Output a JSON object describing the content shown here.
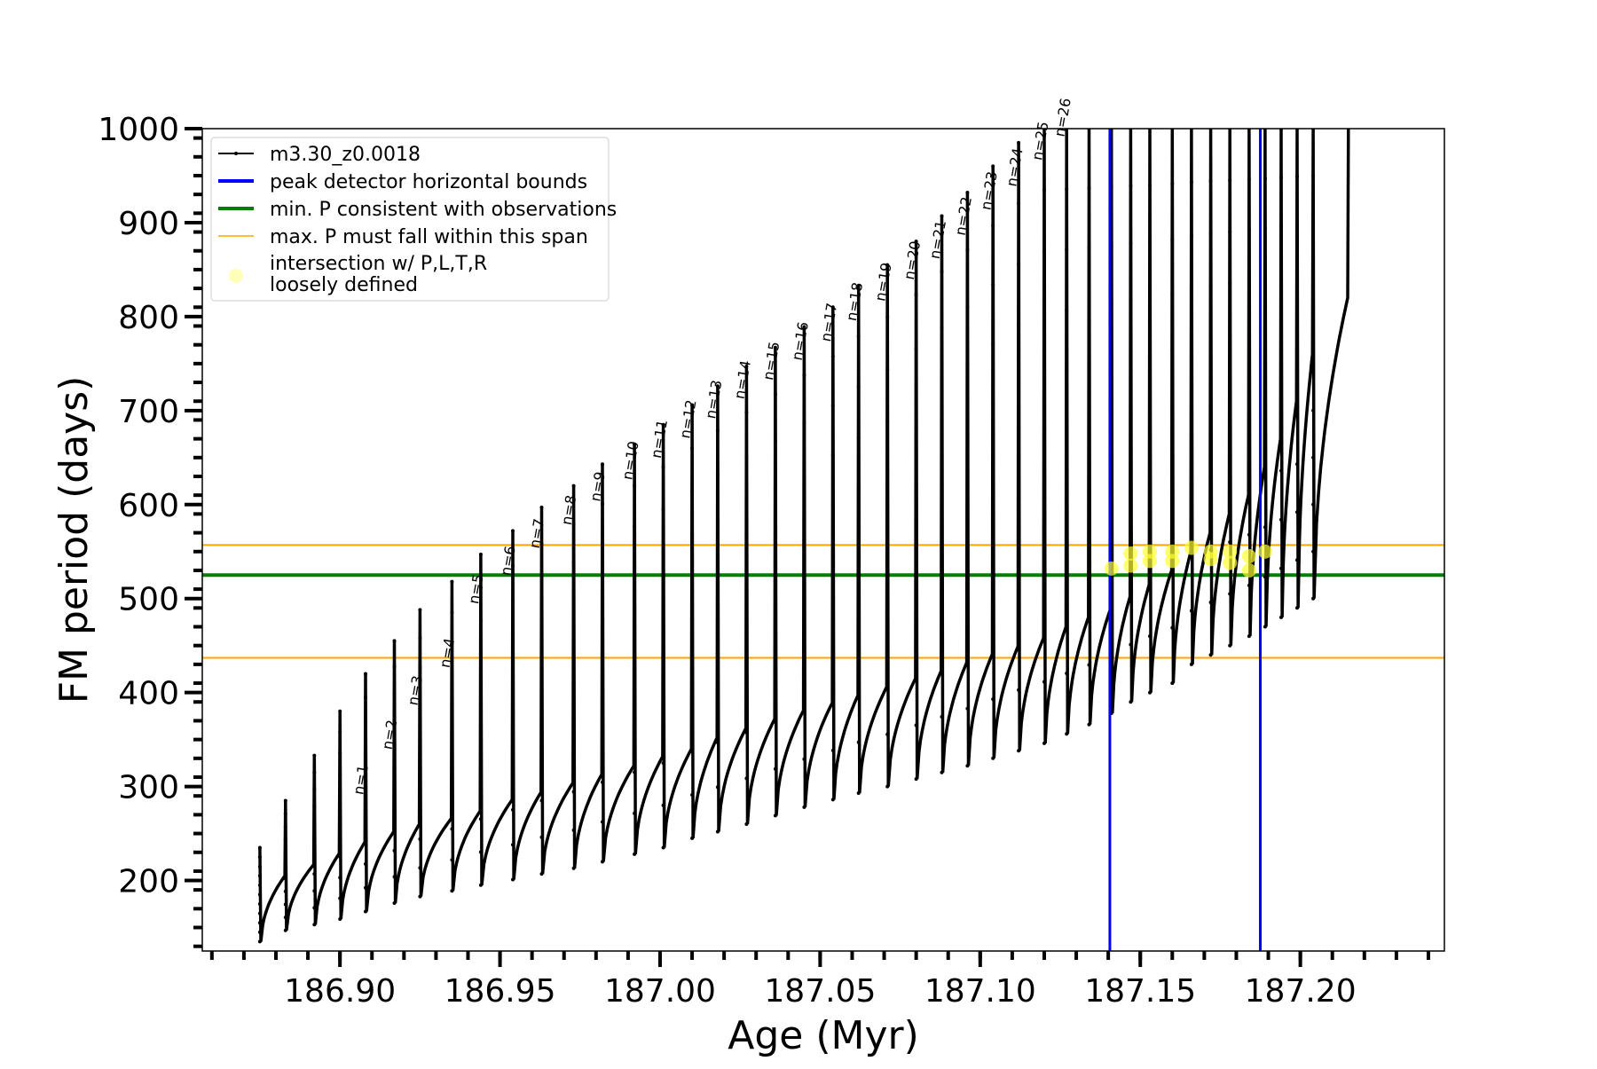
{
  "chart_data": {
    "type": "line",
    "xlabel": "Age (Myr)",
    "ylabel": "FM period (days)",
    "xlim": [
      186.857,
      187.245
    ],
    "ylim": [
      125,
      1000
    ],
    "x_ticks": [
      186.9,
      186.95,
      187.0,
      187.05,
      187.1,
      187.15,
      187.2
    ],
    "x_tick_labels": [
      "186.90",
      "186.95",
      "187.00",
      "187.05",
      "187.10",
      "187.15",
      "187.20"
    ],
    "y_ticks": [
      200,
      300,
      400,
      500,
      600,
      700,
      800,
      900,
      1000
    ],
    "y_tick_labels": [
      "200",
      "300",
      "400",
      "500",
      "600",
      "700",
      "800",
      "900",
      "1000"
    ],
    "grid": false,
    "legend_position": "upper-left",
    "legend": [
      {
        "label": "m3.30_z0.0018",
        "kind": "line-marker",
        "color": "#000000"
      },
      {
        "label": "peak detector horizontal bounds",
        "kind": "line",
        "color": "#0000ff"
      },
      {
        "label": "min. P consistent with observations",
        "kind": "line",
        "color": "#008000"
      },
      {
        "label": "max. P must fall within this span",
        "kind": "line",
        "color": "#ffa500"
      },
      {
        "label": "intersection w/ P,L,T,R\nloosely defined",
        "kind": "marker",
        "color": "#ffff66"
      }
    ],
    "series": [
      {
        "name": "m3.30_z0.0018",
        "color": "#000000",
        "pulse_start_ages": [
          186.875,
          186.883,
          186.892,
          186.9,
          186.908,
          186.917,
          186.925,
          186.935,
          186.944,
          186.954,
          186.963,
          186.973,
          186.982,
          186.992,
          187.001,
          187.01,
          187.018,
          187.027,
          187.036,
          187.045,
          187.054,
          187.062,
          187.071,
          187.08,
          187.088,
          187.096,
          187.104,
          187.112,
          187.12,
          187.127,
          187.134,
          187.141,
          187.147,
          187.153,
          187.16,
          187.166,
          187.172,
          187.178,
          187.184,
          187.189,
          187.194,
          187.199,
          187.204
        ],
        "interpulse_max_P": [
          205,
          217,
          229,
          241,
          252,
          260,
          266,
          274,
          286,
          294,
          304,
          313,
          322,
          332,
          340,
          352,
          362,
          372,
          381,
          389,
          397,
          406,
          415,
          423,
          432,
          441,
          449,
          458,
          470,
          480,
          490,
          502,
          515,
          530,
          550,
          570,
          590,
          610,
          640,
          670,
          710,
          760,
          820
        ],
        "spike_min_P": [
          135,
          147,
          153,
          159,
          167,
          176,
          183,
          189,
          195,
          201,
          207,
          213,
          220,
          228,
          235,
          245,
          252,
          260,
          269,
          278,
          286,
          293,
          300,
          308,
          315,
          322,
          330,
          338,
          346,
          356,
          366,
          378,
          390,
          400,
          410,
          430,
          440,
          450,
          460,
          470,
          480,
          490,
          500
        ],
        "spike_peak_P": [
          235,
          285,
          333,
          380,
          420,
          455,
          488,
          518,
          547,
          572,
          597,
          620,
          643,
          664,
          685,
          706,
          726,
          747,
          767,
          789,
          810,
          833,
          855,
          880,
          907,
          932,
          960,
          985,
          1000,
          1000,
          1000,
          1000,
          1000,
          1000,
          1000,
          1000,
          1000,
          1000,
          1000,
          1000,
          1000,
          1000,
          1000
        ],
        "final_age": 187.215,
        "final_P": 1000
      }
    ],
    "pulse_labels": [
      {
        "text": "n=1",
        "x": 186.908,
        "y": 285
      },
      {
        "text": "n=2",
        "x": 186.917,
        "y": 333
      },
      {
        "text": "n=3",
        "x": 186.925,
        "y": 380
      },
      {
        "text": "n=4",
        "x": 186.935,
        "y": 420
      },
      {
        "text": "n=5",
        "x": 186.944,
        "y": 488
      },
      {
        "text": "n=6",
        "x": 186.954,
        "y": 518
      },
      {
        "text": "n=7",
        "x": 186.963,
        "y": 547
      },
      {
        "text": "n=8",
        "x": 186.973,
        "y": 572
      },
      {
        "text": "n=9",
        "x": 186.982,
        "y": 597
      },
      {
        "text": "n=10",
        "x": 186.992,
        "y": 620
      },
      {
        "text": "n=11",
        "x": 187.001,
        "y": 643
      },
      {
        "text": "n=12",
        "x": 187.01,
        "y": 664
      },
      {
        "text": "n=13",
        "x": 187.018,
        "y": 685
      },
      {
        "text": "n=14",
        "x": 187.027,
        "y": 706
      },
      {
        "text": "n=15",
        "x": 187.036,
        "y": 726
      },
      {
        "text": "n=16",
        "x": 187.045,
        "y": 747
      },
      {
        "text": "n=17",
        "x": 187.054,
        "y": 767
      },
      {
        "text": "n=18",
        "x": 187.062,
        "y": 789
      },
      {
        "text": "n=19",
        "x": 187.071,
        "y": 810
      },
      {
        "text": "n=20",
        "x": 187.08,
        "y": 833
      },
      {
        "text": "n=21",
        "x": 187.088,
        "y": 855
      },
      {
        "text": "n=22",
        "x": 187.096,
        "y": 880
      },
      {
        "text": "n=23",
        "x": 187.104,
        "y": 907
      },
      {
        "text": "n=24",
        "x": 187.112,
        "y": 932
      },
      {
        "text": "n=25",
        "x": 187.12,
        "y": 960
      },
      {
        "text": "n=26",
        "x": 187.127,
        "y": 985
      }
    ],
    "vertical_lines": [
      {
        "x": 187.1405,
        "color": "#0000ff"
      },
      {
        "x": 187.1875,
        "color": "#0000ff"
      }
    ],
    "horizontal_lines": [
      {
        "y": 525,
        "color": "#008000"
      },
      {
        "y": 437,
        "color": "#ffa500"
      },
      {
        "y": 557,
        "color": "#ffa500"
      }
    ],
    "intersections": [
      {
        "x": 187.141,
        "y": 532
      },
      {
        "x": 187.147,
        "y": 548
      },
      {
        "x": 187.147,
        "y": 535
      },
      {
        "x": 187.153,
        "y": 550
      },
      {
        "x": 187.153,
        "y": 540
      },
      {
        "x": 187.16,
        "y": 550
      },
      {
        "x": 187.16,
        "y": 540
      },
      {
        "x": 187.166,
        "y": 554
      },
      {
        "x": 187.172,
        "y": 550
      },
      {
        "x": 187.172,
        "y": 542
      },
      {
        "x": 187.178,
        "y": 550
      },
      {
        "x": 187.178,
        "y": 538
      },
      {
        "x": 187.184,
        "y": 545
      },
      {
        "x": 187.184,
        "y": 530
      },
      {
        "x": 187.189,
        "y": 550
      }
    ]
  }
}
